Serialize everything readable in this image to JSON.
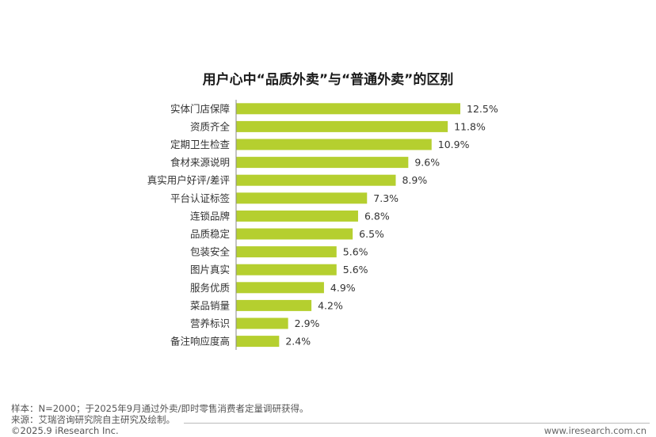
{
  "chart_data": {
    "type": "bar",
    "orientation": "horizontal",
    "title": "用户心中“品质外卖”与“普通外卖”的区别",
    "categories": [
      "实体门店保障",
      "资质齐全",
      "定期卫生检查",
      "食材来源说明",
      "真实用户好评/差评",
      "平台认证标签",
      "连锁品牌",
      "品质稳定",
      "包装安全",
      "图片真实",
      "服务优质",
      "菜品销量",
      "营养标识",
      "备注响应度高"
    ],
    "values": [
      12.5,
      11.8,
      10.9,
      9.6,
      8.9,
      7.3,
      6.8,
      6.5,
      5.6,
      5.6,
      4.9,
      4.2,
      2.9,
      2.4
    ],
    "value_labels": [
      "12.5%",
      "11.8%",
      "10.9%",
      "9.6%",
      "8.9%",
      "7.3%",
      "6.8%",
      "6.5%",
      "5.6%",
      "5.6%",
      "4.9%",
      "4.2%",
      "2.9%",
      "2.4%"
    ],
    "xlim": [
      0,
      14
    ],
    "bar_color": "#b5cf2f",
    "grid": false,
    "legend": "none"
  },
  "footnotes": {
    "sample": "样本：N=2000；于2025年9月通过外卖/即时零售消费者定量调研获得。",
    "source": "来源：艾瑞咨询研究院自主研究及绘制。",
    "copyright": "©2025.9 iResearch Inc."
  },
  "footer_url": "www.iresearch.com.cn"
}
